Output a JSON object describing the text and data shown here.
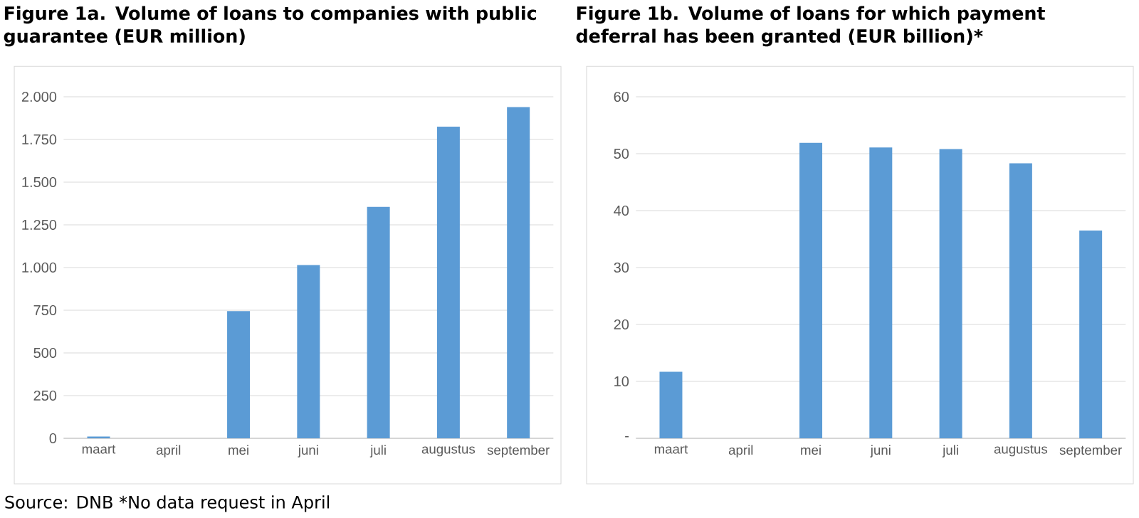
{
  "chart_data": [
    {
      "type": "bar",
      "title": "Figure 1a. Volume of loans to companies with public guarantee (EUR million)",
      "categories": [
        "maart",
        "april",
        "mei",
        "juni",
        "juli",
        "augustus",
        "september"
      ],
      "values": [
        10,
        null,
        745,
        1015,
        1355,
        1825,
        1940
      ],
      "color": "#5b9bd5",
      "ylim": [
        0,
        2000
      ],
      "yticks": [
        0,
        250,
        500,
        750,
        {
          "value": 1000,
          "label": "1.000"
        },
        {
          "value": 1250,
          "label": "1.250"
        },
        {
          "value": 1500,
          "label": "1.500"
        },
        {
          "value": 1750,
          "label": "1.750"
        },
        {
          "value": 2000,
          "label": "2.000"
        }
      ],
      "grid": "y",
      "annotations": [
        "Source: DNB *No data request in April"
      ]
    },
    {
      "type": "bar",
      "title": "Figure 1b. Volume of loans for which payment deferral has been granted (EUR billion)*",
      "categories": [
        "maart",
        "april",
        "mei",
        "juni",
        "juli",
        "augustus",
        "september"
      ],
      "values": [
        11.7,
        null,
        51.9,
        51.1,
        50.8,
        48.3,
        36.5
      ],
      "color": "#5b9bd5",
      "ylim": [
        0,
        60
      ],
      "yticks": [
        {
          "value": 0,
          "label": "-"
        },
        10,
        20,
        30,
        40,
        50,
        60
      ],
      "grid": "y"
    }
  ]
}
